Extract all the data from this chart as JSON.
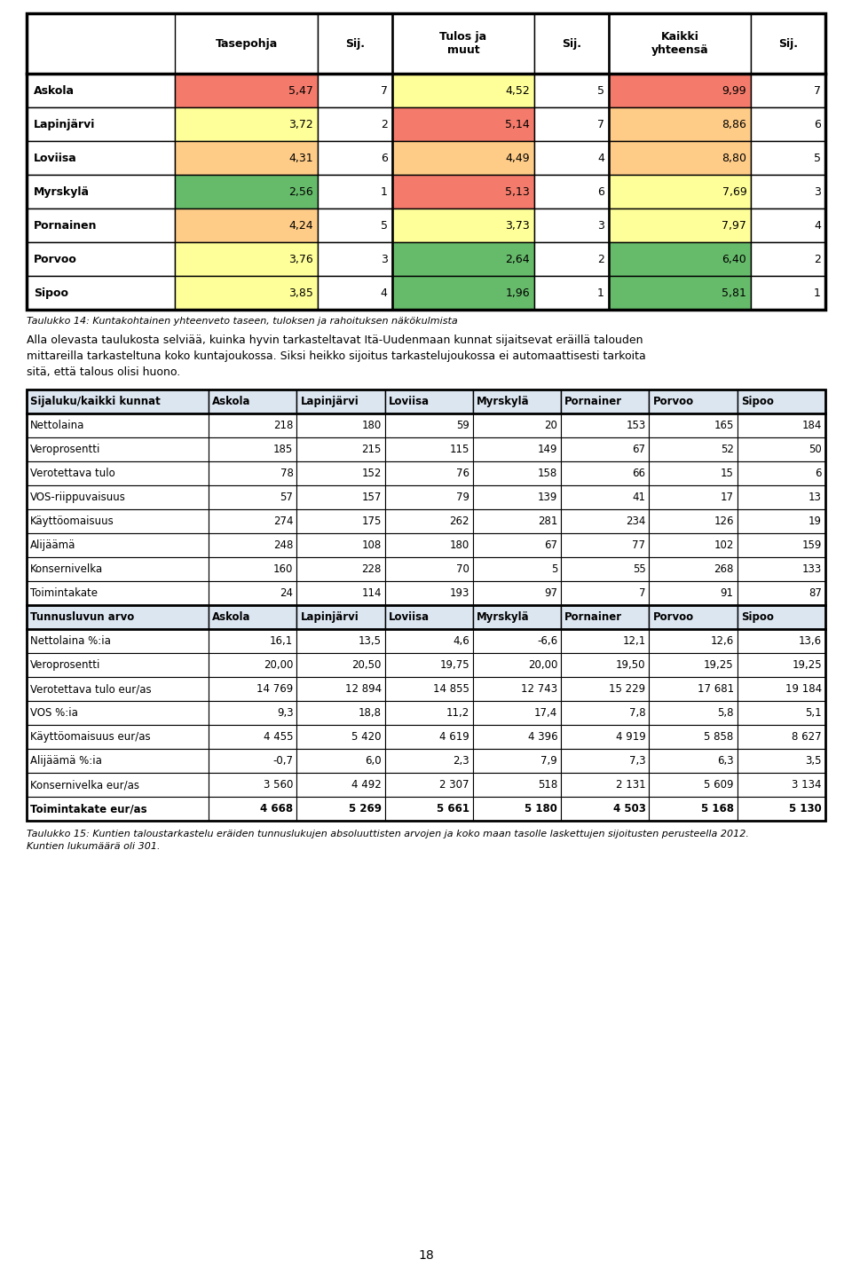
{
  "table1_headers": [
    "",
    "Tasepohja",
    "Sij.",
    "Tulos ja\nmuut",
    "Sij.",
    "Kaikki\nyhteensä",
    "Sij."
  ],
  "table1_rows": [
    [
      "Askola",
      "5,47",
      "7",
      "4,52",
      "5",
      "9,99",
      "7"
    ],
    [
      "Lapinjärvi",
      "3,72",
      "2",
      "5,14",
      "7",
      "8,86",
      "6"
    ],
    [
      "Loviisa",
      "4,31",
      "6",
      "4,49",
      "4",
      "8,80",
      "5"
    ],
    [
      "Myrskylä",
      "2,56",
      "1",
      "5,13",
      "6",
      "7,69",
      "3"
    ],
    [
      "Pornainen",
      "4,24",
      "5",
      "3,73",
      "3",
      "7,97",
      "4"
    ],
    [
      "Porvoo",
      "3,76",
      "3",
      "2,64",
      "2",
      "6,40",
      "2"
    ],
    [
      "Sipoo",
      "3,85",
      "4",
      "1,96",
      "1",
      "5,81",
      "1"
    ]
  ],
  "table1_cell_colors": [
    [
      "#f47b6b",
      "#ffffff",
      "#ffff99",
      "#ffffff",
      "#f47b6b",
      "#ffffff"
    ],
    [
      "#ffff99",
      "#ffffff",
      "#f47b6b",
      "#ffffff",
      "#ffcc88",
      "#ffffff"
    ],
    [
      "#ffcc88",
      "#ffffff",
      "#ffcc88",
      "#ffffff",
      "#ffcc88",
      "#ffffff"
    ],
    [
      "#66bb6a",
      "#ffffff",
      "#f47b6b",
      "#ffffff",
      "#ffff99",
      "#ffffff"
    ],
    [
      "#ffcc88",
      "#ffffff",
      "#ffff99",
      "#ffffff",
      "#ffff99",
      "#ffffff"
    ],
    [
      "#ffff99",
      "#ffffff",
      "#66bb6a",
      "#ffffff",
      "#66bb6a",
      "#ffffff"
    ],
    [
      "#ffff99",
      "#ffffff",
      "#66bb6a",
      "#ffffff",
      "#66bb6a",
      "#ffffff"
    ]
  ],
  "caption1": "Taulukko 14: Kuntakohtainen yhteenveto taseen, tuloksen ja rahoituksen näkökulmista",
  "para_line1": "Alla olevasta taulukosta selviää, kuinka hyvin tarkasteltavat Itä-Uudenmaan kunnat sijaitsevat eräillä talouden",
  "para_line2": "mittareilla tarkasteltuna koko kuntajoukossa. Siksi heikko sijoitus tarkastelujoukossa ei automaattisesti tarkoita",
  "para_line3": "sitä, että talous olisi huono.",
  "table2_header1": [
    "Sijaluku/kaikki kunnat",
    "Askola",
    "Lapinjärvi",
    "Loviisa",
    "Myrskylä",
    "Pornainer",
    "Porvoo",
    "Sipoo"
  ],
  "table2_rows_part1": [
    [
      "Nettolaina",
      "218",
      "180",
      "59",
      "20",
      "153",
      "165",
      "184"
    ],
    [
      "Veroprosentti",
      "185",
      "215",
      "115",
      "149",
      "67",
      "52",
      "50"
    ],
    [
      "Verotettava tulo",
      "78",
      "152",
      "76",
      "158",
      "66",
      "15",
      "6"
    ],
    [
      "VOS-riippuvaisuus",
      "57",
      "157",
      "79",
      "139",
      "41",
      "17",
      "13"
    ],
    [
      "Käyttöomaisuus",
      "274",
      "175",
      "262",
      "281",
      "234",
      "126",
      "19"
    ],
    [
      "Alijäämä",
      "248",
      "108",
      "180",
      "67",
      "77",
      "102",
      "159"
    ],
    [
      "Konsernivelka",
      "160",
      "228",
      "70",
      "5",
      "55",
      "268",
      "133"
    ],
    [
      "Toimintakate",
      "24",
      "114",
      "193",
      "97",
      "7",
      "91",
      "87"
    ]
  ],
  "table2_header2": [
    "Tunnusluvun arvo",
    "Askola",
    "Lapinjärvi",
    "Loviisa",
    "Myrskylä",
    "Pornainer",
    "Porvoo",
    "Sipoo"
  ],
  "table2_rows_part2": [
    [
      "Nettolaina %:ia",
      "16,1",
      "13,5",
      "4,6",
      "-6,6",
      "12,1",
      "12,6",
      "13,6"
    ],
    [
      "Veroprosentti",
      "20,00",
      "20,50",
      "19,75",
      "20,00",
      "19,50",
      "19,25",
      "19,25"
    ],
    [
      "Verotettava tulo eur/as",
      "14 769",
      "12 894",
      "14 855",
      "12 743",
      "15 229",
      "17 681",
      "19 184"
    ],
    [
      "VOS %:ia",
      "9,3",
      "18,8",
      "11,2",
      "17,4",
      "7,8",
      "5,8",
      "5,1"
    ],
    [
      "Käyttöomaisuus eur/as",
      "4 455",
      "5 420",
      "4 619",
      "4 396",
      "4 919",
      "5 858",
      "8 627"
    ],
    [
      "Alijäämä %:ia",
      "-0,7",
      "6,0",
      "2,3",
      "7,9",
      "7,3",
      "6,3",
      "3,5"
    ],
    [
      "Konsernivelka eur/as",
      "3 560",
      "4 492",
      "2 307",
      "518",
      "2 131",
      "5 609",
      "3 134"
    ],
    [
      "Toimintakate eur/as",
      "4 668",
      "5 269",
      "5 661",
      "5 180",
      "4 503",
      "5 168",
      "5 130"
    ]
  ],
  "cap2_line1": "Taulukko 15: Kuntien taloustarkastelu eräiden tunnuslukujen absoluuttisten arvojen ja koko maan tasolle laskettujen sijoitusten perusteella 2012.",
  "cap2_line2": "Kuntien lukumäärä oli 301.",
  "page_number": "18",
  "table2_header_bg": "#dce6f1"
}
